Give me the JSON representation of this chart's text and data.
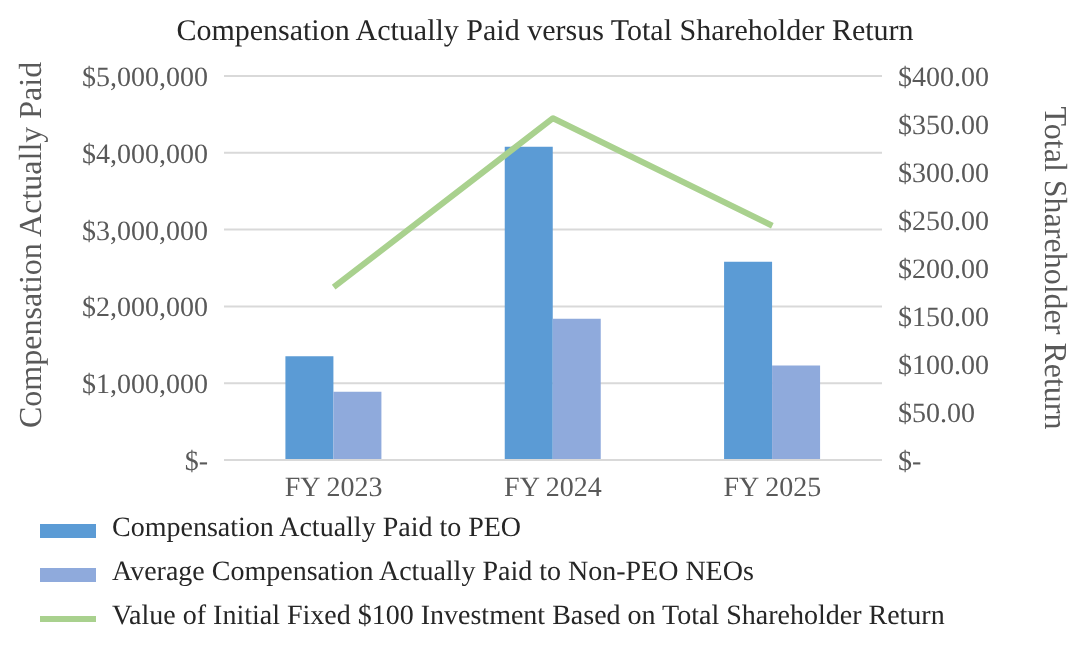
{
  "chart_data": {
    "type": "bar",
    "title": "Compensation Actually Paid versus Total Shareholder Return",
    "ylabel": "Compensation Actually Paid",
    "y2label": "Total Shareholder Return",
    "categories": [
      "FY 2023",
      "FY 2024",
      "FY 2025"
    ],
    "series": [
      {
        "name": "Compensation Actually Paid to PEO",
        "color": "#5b9bd5",
        "values": [
          1350000,
          4080000,
          2580000
        ]
      },
      {
        "name": "Average Compensation Actually Paid to Non-PEO NEOs",
        "color": "#8faadc",
        "values": [
          890000,
          1840000,
          1230000
        ]
      },
      {
        "name": "Value of Initial Fixed $100 Investment Based on Total Shareholder Return",
        "type": "line",
        "axis": "y2",
        "color": "#a9d18e",
        "values": [
          180,
          356,
          244
        ]
      }
    ],
    "ylim": [
      0,
      5000000
    ],
    "yticks": [
      {
        "value": 0,
        "label": "$-"
      },
      {
        "value": 1000000,
        "label": "$1,000,000"
      },
      {
        "value": 2000000,
        "label": "$2,000,000"
      },
      {
        "value": 3000000,
        "label": "$3,000,000"
      },
      {
        "value": 4000000,
        "label": "$4,000,000"
      },
      {
        "value": 5000000,
        "label": "$5,000,000"
      }
    ],
    "y2lim": [
      0,
      400
    ],
    "y2ticks": [
      {
        "value": 0,
        "label": "$-"
      },
      {
        "value": 50,
        "label": "$50.00"
      },
      {
        "value": 100,
        "label": "$100.00"
      },
      {
        "value": 150,
        "label": "$150.00"
      },
      {
        "value": 200,
        "label": "$200.00"
      },
      {
        "value": 250,
        "label": "$250.00"
      },
      {
        "value": 300,
        "label": "$300.00"
      },
      {
        "value": 350,
        "label": "$350.00"
      },
      {
        "value": 400,
        "label": "$400.00"
      }
    ],
    "grid": "y",
    "legend": "bottom",
    "marker": "none",
    "line_style": "solid"
  }
}
